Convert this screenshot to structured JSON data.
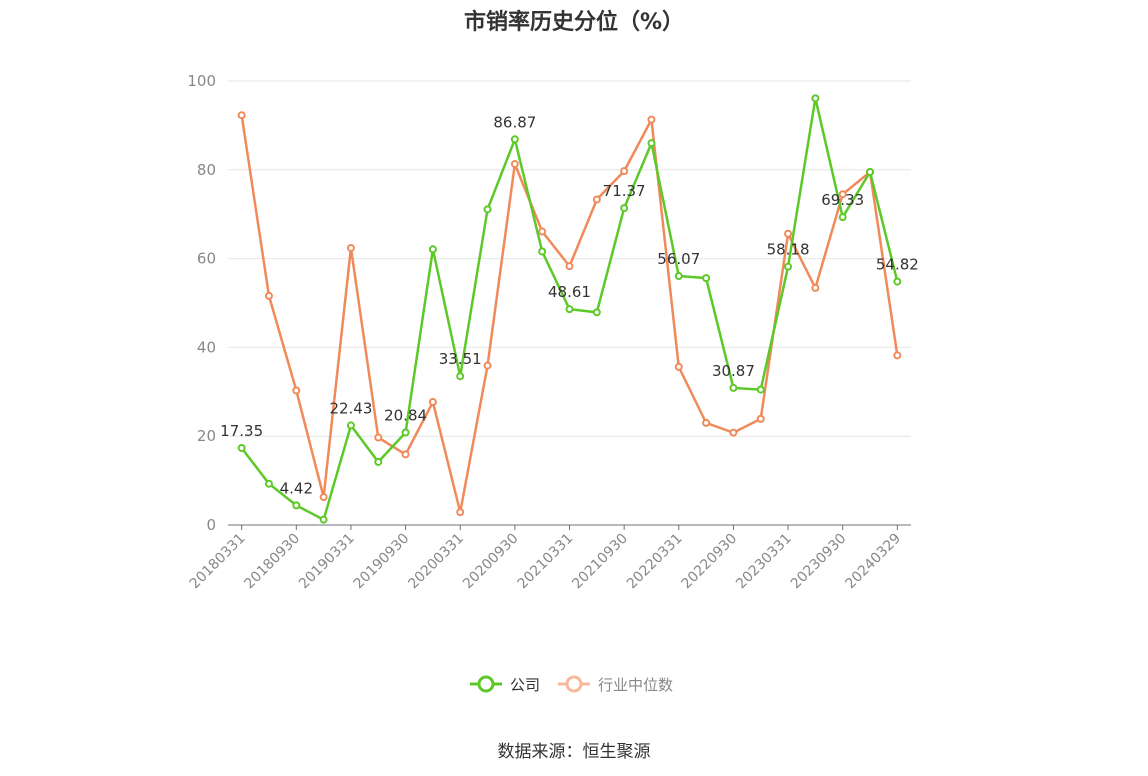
{
  "chart_data": {
    "type": "line",
    "title": "市销率历史分位（%）",
    "xlabel": "",
    "ylabel": "",
    "ylim": [
      0,
      100
    ],
    "yticks": [
      0,
      20,
      40,
      60,
      80,
      100
    ],
    "grid": true,
    "legend": "bottom-center",
    "categories": [
      "20180331",
      "20180630",
      "20180930",
      "20181231",
      "20190331",
      "20190630",
      "20190930",
      "20191231",
      "20200331",
      "20200630",
      "20200930",
      "20201231",
      "20210331",
      "20210630",
      "20210930",
      "20211231",
      "20220331",
      "20220630",
      "20220930",
      "20221231",
      "20230331",
      "20230630",
      "20230930",
      "20231231",
      "20240329"
    ],
    "x_tick_labels": [
      "20180331",
      "20180930",
      "20190331",
      "20190930",
      "20200331",
      "20200930",
      "20210331",
      "20210930",
      "20220331",
      "20220930",
      "20230331",
      "20230930",
      "20240329"
    ],
    "series": [
      {
        "name": "公司",
        "color": "#5cc928",
        "values": [
          17.35,
          9.3,
          4.42,
          1.2,
          22.43,
          14.2,
          20.84,
          62.1,
          33.51,
          71.1,
          86.87,
          61.6,
          48.61,
          47.9,
          71.37,
          86.0,
          56.07,
          55.6,
          30.87,
          30.5,
          58.18,
          96.1,
          69.33,
          79.5,
          54.82
        ],
        "labels": {
          "0": "17.35",
          "2": "4.42",
          "4": "22.43",
          "6": "20.84",
          "8": "33.51",
          "10": "86.87",
          "12": "48.61",
          "14": "71.37",
          "16": "56.07",
          "18": "30.87",
          "20": "58.18",
          "22": "69.33",
          "24": "54.82"
        }
      },
      {
        "name": "行业中位数",
        "color": "#f08a5a",
        "values": [
          92.3,
          51.6,
          30.3,
          6.3,
          62.4,
          19.7,
          15.9,
          27.7,
          2.9,
          35.9,
          81.3,
          66.1,
          58.3,
          73.3,
          79.7,
          91.3,
          35.6,
          23.0,
          20.8,
          23.9,
          65.6,
          53.4,
          74.5,
          79.5,
          38.2
        ]
      }
    ]
  },
  "legend": {
    "company": "公司",
    "industry": "行业中位数"
  },
  "source": "数据来源：恒生聚源"
}
